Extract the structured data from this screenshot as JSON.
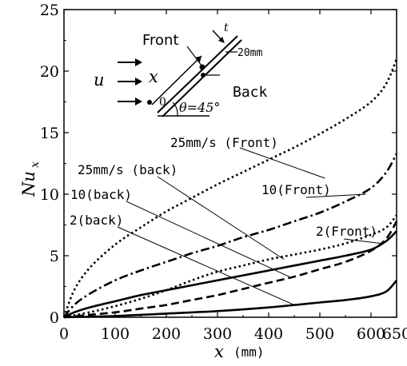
{
  "chart_data": {
    "type": "line",
    "xlabel": "x",
    "xlabel_unit": "(mm)",
    "ylabel": "Nu",
    "ylabel_sub": "x",
    "xlim": [
      0,
      650
    ],
    "ylim": [
      0,
      25
    ],
    "xticks": [
      0,
      100,
      200,
      300,
      400,
      500,
      600,
      650
    ],
    "yticks": [
      0,
      5,
      10,
      15,
      20,
      25
    ],
    "grid": false,
    "series": [
      {
        "name": "25mm/s (Front)",
        "style": "dotted",
        "x": [
          0,
          20,
          50,
          100,
          150,
          200,
          250,
          300,
          350,
          400,
          450,
          500,
          550,
          600,
          630,
          650
        ],
        "y": [
          0,
          2.2,
          4.0,
          5.9,
          7.3,
          8.6,
          9.7,
          10.8,
          11.8,
          12.8,
          13.8,
          14.9,
          16.1,
          17.5,
          19.0,
          21.0
        ]
      },
      {
        "name": "10 (Front)",
        "style": "dashdot",
        "x": [
          0,
          20,
          50,
          100,
          150,
          200,
          250,
          300,
          350,
          400,
          450,
          500,
          550,
          600,
          630,
          650
        ],
        "y": [
          0,
          1.0,
          1.9,
          3.0,
          3.8,
          4.5,
          5.2,
          5.8,
          6.5,
          7.1,
          7.8,
          8.5,
          9.4,
          10.5,
          11.8,
          13.3
        ]
      },
      {
        "name": "2 (Front)",
        "style": "solid",
        "x": [
          0,
          20,
          50,
          100,
          150,
          200,
          250,
          300,
          350,
          400,
          450,
          500,
          550,
          600,
          630,
          650
        ],
        "y": [
          0,
          0.4,
          0.8,
          1.3,
          1.8,
          2.2,
          2.6,
          3.0,
          3.4,
          3.8,
          4.2,
          4.6,
          5.0,
          5.5,
          6.2,
          7.0
        ]
      },
      {
        "name": "25mm/s (back)",
        "style": "dotted",
        "x": [
          0,
          50,
          100,
          150,
          200,
          250,
          300,
          350,
          400,
          450,
          500,
          550,
          600,
          630,
          650
        ],
        "y": [
          0,
          0.4,
          0.9,
          1.5,
          2.2,
          3.0,
          3.7,
          4.2,
          4.7,
          5.1,
          5.5,
          6.0,
          6.7,
          7.3,
          8.3
        ]
      },
      {
        "name": "10 (back)",
        "style": "dashed",
        "x": [
          0,
          50,
          100,
          150,
          200,
          250,
          300,
          350,
          400,
          450,
          500,
          550,
          600,
          630,
          650
        ],
        "y": [
          0,
          0.2,
          0.4,
          0.7,
          1.0,
          1.4,
          1.8,
          2.3,
          2.8,
          3.3,
          3.9,
          4.5,
          5.4,
          6.4,
          7.8
        ]
      },
      {
        "name": "2 (back)",
        "style": "solid",
        "x": [
          0,
          100,
          200,
          300,
          400,
          500,
          550,
          600,
          630,
          650
        ],
        "y": [
          0,
          0.1,
          0.3,
          0.5,
          0.8,
          1.2,
          1.4,
          1.7,
          2.1,
          3.0
        ]
      }
    ],
    "annotations": [
      {
        "text": "25mm/s (Front)",
        "series": "25mm/s (Front)"
      },
      {
        "text": "10(Front)",
        "series": "10 (Front)"
      },
      {
        "text": "2(Front)",
        "series": "2 (Front)"
      },
      {
        "text": "25mm/s (back)",
        "series": "25mm/s (back)"
      },
      {
        "text": "10(back)",
        "series": "10 (back)"
      },
      {
        "text": "2(back)",
        "series": "2 (back)"
      }
    ],
    "inset": {
      "front_label": "Front",
      "back_label": "Back",
      "flow_label": "u",
      "x_label": "x",
      "t_label": "t",
      "width_label": "20mm",
      "angle_label": "θ=45°",
      "origin_label": "0"
    }
  }
}
